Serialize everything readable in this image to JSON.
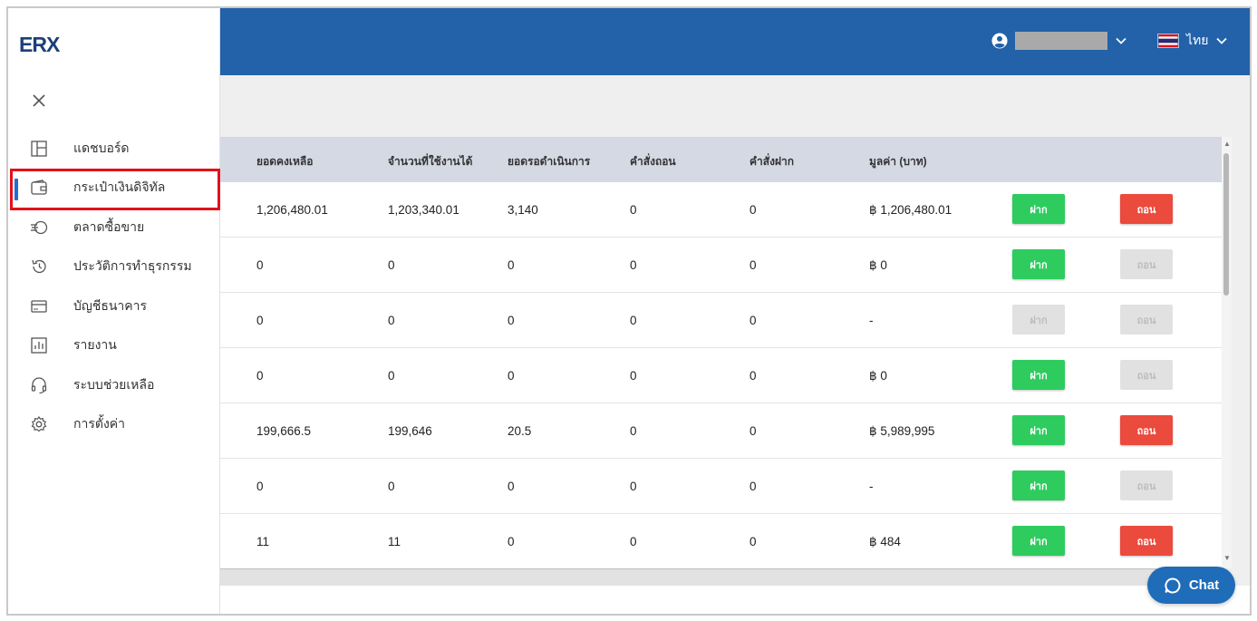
{
  "header": {
    "user_name": "",
    "language": "ไทย"
  },
  "sidebar": {
    "logo_text": "ERX",
    "items": [
      {
        "label": "แดชบอร์ด",
        "icon": "dashboard-icon"
      },
      {
        "label": "กระเป๋าเงินดิจิทัล",
        "icon": "wallet-icon"
      },
      {
        "label": "ตลาดซื้อขาย",
        "icon": "exchange-icon"
      },
      {
        "label": "ประวัติการทำธุรกรรม",
        "icon": "history-icon"
      },
      {
        "label": "บัญชีธนาคาร",
        "icon": "bank-card-icon"
      },
      {
        "label": "รายงาน",
        "icon": "report-chart-icon"
      },
      {
        "label": "ระบบช่วยเหลือ",
        "icon": "headset-icon"
      },
      {
        "label": "การตั้งค่า",
        "icon": "gear-icon"
      }
    ],
    "active_index": 1
  },
  "table": {
    "headers": [
      "ยอดคงเหลือ",
      "จำนวนที่ใช้งานได้",
      "ยอดรอดำเนินการ",
      "คำสั่งถอน",
      "คำสั่งฝาก",
      "มูลค่า (บาท)"
    ],
    "deposit_label": "ฝาก",
    "withdraw_label": "ถอน",
    "rows": [
      {
        "balance": "1,206,480.01",
        "available": "1,203,340.01",
        "pending": "3,140",
        "withdraw_orders": "0",
        "deposit_orders": "0",
        "value": "฿ 1,206,480.01",
        "deposit_enabled": true,
        "withdraw_enabled": true
      },
      {
        "balance": "0",
        "available": "0",
        "pending": "0",
        "withdraw_orders": "0",
        "deposit_orders": "0",
        "value": "฿ 0",
        "deposit_enabled": true,
        "withdraw_enabled": false
      },
      {
        "balance": "0",
        "available": "0",
        "pending": "0",
        "withdraw_orders": "0",
        "deposit_orders": "0",
        "value": "-",
        "deposit_enabled": false,
        "withdraw_enabled": false
      },
      {
        "balance": "0",
        "available": "0",
        "pending": "0",
        "withdraw_orders": "0",
        "deposit_orders": "0",
        "value": "฿ 0",
        "deposit_enabled": true,
        "withdraw_enabled": false
      },
      {
        "balance": "199,666.5",
        "available": "199,646",
        "pending": "20.5",
        "withdraw_orders": "0",
        "deposit_orders": "0",
        "value": "฿ 5,989,995",
        "deposit_enabled": true,
        "withdraw_enabled": true
      },
      {
        "balance": "0",
        "available": "0",
        "pending": "0",
        "withdraw_orders": "0",
        "deposit_orders": "0",
        "value": "-",
        "deposit_enabled": true,
        "withdraw_enabled": false
      },
      {
        "balance": "11",
        "available": "11",
        "pending": "0",
        "withdraw_orders": "0",
        "deposit_orders": "0",
        "value": "฿ 484",
        "deposit_enabled": true,
        "withdraw_enabled": true
      }
    ]
  },
  "chat": {
    "label": "Chat"
  },
  "colors": {
    "header_bg": "#2361a9",
    "deposit_green": "#2ecc5f",
    "withdraw_red": "#ea4b3d",
    "disabled_grey": "#e1e1e1",
    "highlight_red": "#e3111b",
    "active_blue": "#1f6fd1"
  }
}
